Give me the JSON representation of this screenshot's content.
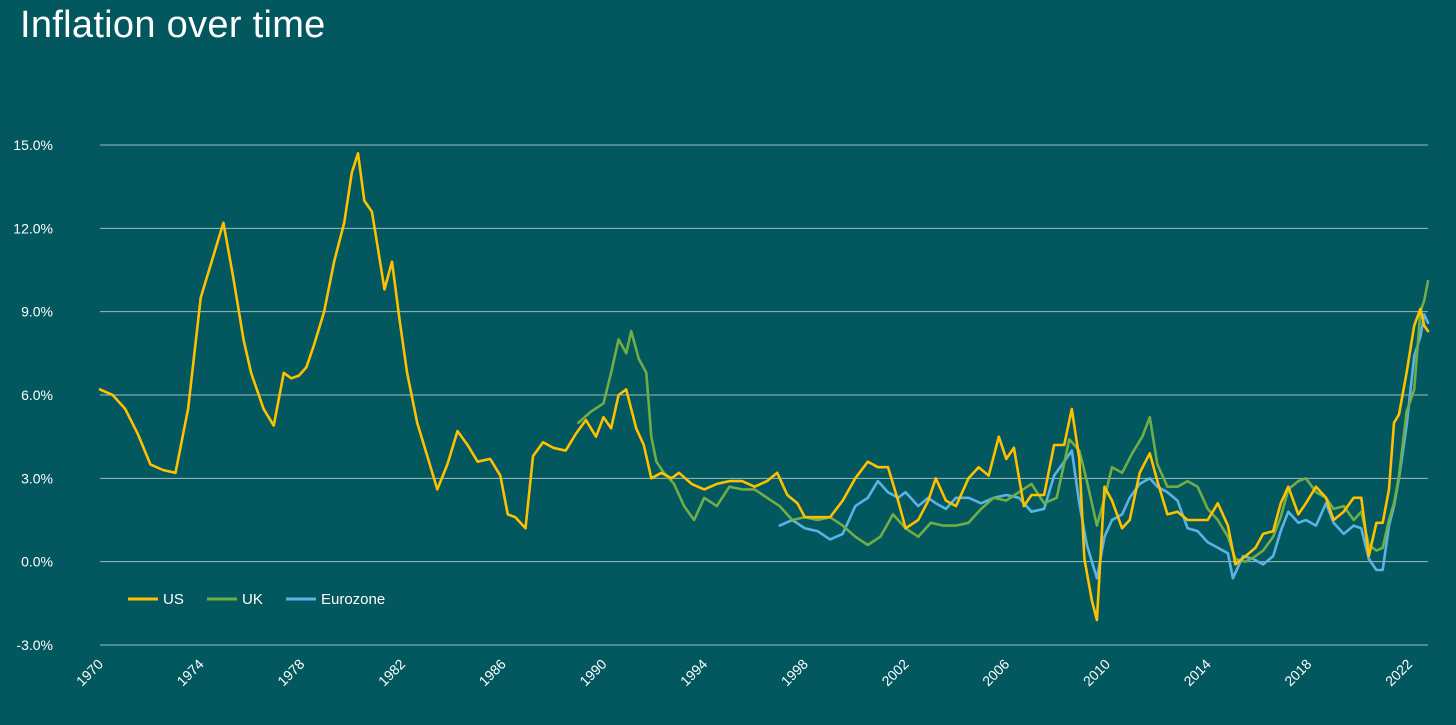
{
  "chart_data": {
    "type": "line",
    "title": "Inflation over time",
    "xlabel": "",
    "ylabel": "",
    "xlim": [
      1970,
      2022.75
    ],
    "ylim": [
      -3.0,
      15.0
    ],
    "y_ticks": [
      "-3.0%",
      "0.0%",
      "3.0%",
      "6.0%",
      "9.0%",
      "12.0%",
      "15.0%"
    ],
    "x_ticks": [
      "1970",
      "1974",
      "1978",
      "1982",
      "1986",
      "1990",
      "1994",
      "1998",
      "2002",
      "2006",
      "2010",
      "2014",
      "2018",
      "2022"
    ],
    "grid": "horizontal",
    "legend": "bottom-left",
    "colors": {
      "background": "#03575E",
      "grid": "#9DBDBE",
      "US": "#FFC000",
      "UK": "#70AD47",
      "Eurozone": "#5BB3E5"
    },
    "series": [
      {
        "name": "US",
        "color": "#FFC000",
        "points": [
          [
            1970.0,
            6.2
          ],
          [
            1970.5,
            6.0
          ],
          [
            1971.0,
            5.5
          ],
          [
            1971.5,
            4.6
          ],
          [
            1972.0,
            3.5
          ],
          [
            1972.5,
            3.3
          ],
          [
            1973.0,
            3.2
          ],
          [
            1973.5,
            5.5
          ],
          [
            1974.0,
            9.5
          ],
          [
            1974.5,
            11.0
          ],
          [
            1974.9,
            12.2
          ],
          [
            1975.3,
            10.2
          ],
          [
            1975.7,
            8.0
          ],
          [
            1976.0,
            6.8
          ],
          [
            1976.5,
            5.5
          ],
          [
            1976.9,
            4.9
          ],
          [
            1977.3,
            6.8
          ],
          [
            1977.6,
            6.6
          ],
          [
            1977.9,
            6.7
          ],
          [
            1978.2,
            7.0
          ],
          [
            1978.5,
            7.8
          ],
          [
            1978.9,
            9.0
          ],
          [
            1979.3,
            10.8
          ],
          [
            1979.7,
            12.2
          ],
          [
            1980.0,
            14.0
          ],
          [
            1980.25,
            14.7
          ],
          [
            1980.5,
            13.0
          ],
          [
            1980.8,
            12.6
          ],
          [
            1981.0,
            11.5
          ],
          [
            1981.3,
            9.8
          ],
          [
            1981.6,
            10.8
          ],
          [
            1981.9,
            8.7
          ],
          [
            1982.2,
            6.8
          ],
          [
            1982.6,
            5.0
          ],
          [
            1983.0,
            3.8
          ],
          [
            1983.4,
            2.6
          ],
          [
            1983.8,
            3.5
          ],
          [
            1984.2,
            4.7
          ],
          [
            1984.6,
            4.2
          ],
          [
            1985.0,
            3.6
          ],
          [
            1985.5,
            3.7
          ],
          [
            1985.9,
            3.1
          ],
          [
            1986.2,
            1.7
          ],
          [
            1986.5,
            1.6
          ],
          [
            1986.9,
            1.2
          ],
          [
            1987.2,
            3.8
          ],
          [
            1987.6,
            4.3
          ],
          [
            1988.0,
            4.1
          ],
          [
            1988.5,
            4.0
          ],
          [
            1988.9,
            4.6
          ],
          [
            1989.3,
            5.1
          ],
          [
            1989.7,
            4.5
          ],
          [
            1990.0,
            5.2
          ],
          [
            1990.3,
            4.8
          ],
          [
            1990.6,
            6.0
          ],
          [
            1990.9,
            6.2
          ],
          [
            1991.3,
            4.8
          ],
          [
            1991.6,
            4.2
          ],
          [
            1991.9,
            3.0
          ],
          [
            1992.3,
            3.2
          ],
          [
            1992.7,
            3.0
          ],
          [
            1993.0,
            3.2
          ],
          [
            1993.5,
            2.8
          ],
          [
            1994.0,
            2.6
          ],
          [
            1994.5,
            2.8
          ],
          [
            1995.0,
            2.9
          ],
          [
            1995.5,
            2.9
          ],
          [
            1996.0,
            2.7
          ],
          [
            1996.5,
            2.9
          ],
          [
            1996.9,
            3.2
          ],
          [
            1997.3,
            2.4
          ],
          [
            1997.7,
            2.1
          ],
          [
            1998.0,
            1.6
          ],
          [
            1998.5,
            1.6
          ],
          [
            1999.0,
            1.6
          ],
          [
            1999.5,
            2.2
          ],
          [
            2000.0,
            3.0
          ],
          [
            2000.5,
            3.6
          ],
          [
            2000.9,
            3.4
          ],
          [
            2001.3,
            3.4
          ],
          [
            2001.7,
            2.2
          ],
          [
            2002.0,
            1.2
          ],
          [
            2002.5,
            1.5
          ],
          [
            2002.9,
            2.2
          ],
          [
            2003.2,
            3.0
          ],
          [
            2003.6,
            2.2
          ],
          [
            2004.0,
            2.0
          ],
          [
            2004.5,
            3.0
          ],
          [
            2004.9,
            3.4
          ],
          [
            2005.3,
            3.1
          ],
          [
            2005.7,
            4.5
          ],
          [
            2006.0,
            3.7
          ],
          [
            2006.3,
            4.1
          ],
          [
            2006.7,
            2.0
          ],
          [
            2007.0,
            2.4
          ],
          [
            2007.5,
            2.4
          ],
          [
            2007.9,
            4.2
          ],
          [
            2008.3,
            4.2
          ],
          [
            2008.6,
            5.5
          ],
          [
            2008.9,
            3.7
          ],
          [
            2009.1,
            0.1
          ],
          [
            2009.4,
            -1.4
          ],
          [
            2009.6,
            -2.1
          ],
          [
            2009.9,
            2.7
          ],
          [
            2010.2,
            2.2
          ],
          [
            2010.6,
            1.2
          ],
          [
            2010.9,
            1.5
          ],
          [
            2011.3,
            3.2
          ],
          [
            2011.7,
            3.9
          ],
          [
            2012.0,
            2.9
          ],
          [
            2012.4,
            1.7
          ],
          [
            2012.8,
            1.8
          ],
          [
            2013.2,
            1.5
          ],
          [
            2013.6,
            1.5
          ],
          [
            2014.0,
            1.5
          ],
          [
            2014.4,
            2.1
          ],
          [
            2014.8,
            1.3
          ],
          [
            2015.1,
            -0.1
          ],
          [
            2015.5,
            0.2
          ],
          [
            2015.9,
            0.5
          ],
          [
            2016.2,
            1.0
          ],
          [
            2016.6,
            1.1
          ],
          [
            2016.9,
            2.1
          ],
          [
            2017.2,
            2.7
          ],
          [
            2017.6,
            1.7
          ],
          [
            2017.9,
            2.1
          ],
          [
            2018.3,
            2.7
          ],
          [
            2018.7,
            2.3
          ],
          [
            2019.0,
            1.5
          ],
          [
            2019.4,
            1.8
          ],
          [
            2019.8,
            2.3
          ],
          [
            2020.1,
            2.3
          ],
          [
            2020.4,
            0.2
          ],
          [
            2020.7,
            1.4
          ],
          [
            2020.95,
            1.4
          ],
          [
            2021.2,
            2.6
          ],
          [
            2021.4,
            5.0
          ],
          [
            2021.6,
            5.3
          ],
          [
            2021.9,
            6.8
          ],
          [
            2022.2,
            8.5
          ],
          [
            2022.45,
            9.1
          ],
          [
            2022.6,
            8.5
          ],
          [
            2022.75,
            8.3
          ]
        ]
      },
      {
        "name": "UK",
        "color": "#70AD47",
        "points": [
          [
            1989.0,
            5.0
          ],
          [
            1989.5,
            5.4
          ],
          [
            1990.0,
            5.7
          ],
          [
            1990.3,
            6.8
          ],
          [
            1990.6,
            8.0
          ],
          [
            1990.9,
            7.5
          ],
          [
            1991.1,
            8.3
          ],
          [
            1991.4,
            7.3
          ],
          [
            1991.7,
            6.8
          ],
          [
            1991.9,
            4.5
          ],
          [
            1992.1,
            3.6
          ],
          [
            1992.4,
            3.2
          ],
          [
            1992.8,
            2.8
          ],
          [
            1993.2,
            2.0
          ],
          [
            1993.6,
            1.5
          ],
          [
            1994.0,
            2.3
          ],
          [
            1994.5,
            2.0
          ],
          [
            1995.0,
            2.7
          ],
          [
            1995.5,
            2.6
          ],
          [
            1996.0,
            2.6
          ],
          [
            1996.5,
            2.3
          ],
          [
            1997.0,
            2.0
          ],
          [
            1997.5,
            1.5
          ],
          [
            1998.0,
            1.6
          ],
          [
            1998.5,
            1.5
          ],
          [
            1999.0,
            1.6
          ],
          [
            1999.5,
            1.3
          ],
          [
            2000.0,
            0.9
          ],
          [
            2000.5,
            0.6
          ],
          [
            2001.0,
            0.9
          ],
          [
            2001.5,
            1.7
          ],
          [
            2002.0,
            1.2
          ],
          [
            2002.5,
            0.9
          ],
          [
            2003.0,
            1.4
          ],
          [
            2003.5,
            1.3
          ],
          [
            2004.0,
            1.3
          ],
          [
            2004.5,
            1.4
          ],
          [
            2005.0,
            1.9
          ],
          [
            2005.5,
            2.3
          ],
          [
            2006.0,
            2.2
          ],
          [
            2006.5,
            2.5
          ],
          [
            2007.0,
            2.8
          ],
          [
            2007.5,
            2.1
          ],
          [
            2008.0,
            2.3
          ],
          [
            2008.5,
            4.4
          ],
          [
            2008.9,
            4.0
          ],
          [
            2009.2,
            2.9
          ],
          [
            2009.6,
            1.3
          ],
          [
            2009.9,
            2.3
          ],
          [
            2010.2,
            3.4
          ],
          [
            2010.6,
            3.2
          ],
          [
            2011.0,
            3.9
          ],
          [
            2011.4,
            4.5
          ],
          [
            2011.7,
            5.2
          ],
          [
            2012.0,
            3.5
          ],
          [
            2012.4,
            2.7
          ],
          [
            2012.8,
            2.7
          ],
          [
            2013.2,
            2.9
          ],
          [
            2013.6,
            2.7
          ],
          [
            2014.0,
            1.9
          ],
          [
            2014.4,
            1.5
          ],
          [
            2014.8,
            0.9
          ],
          [
            2015.1,
            0.1
          ],
          [
            2015.5,
            0.0
          ],
          [
            2015.9,
            0.2
          ],
          [
            2016.2,
            0.4
          ],
          [
            2016.6,
            0.9
          ],
          [
            2016.9,
            1.6
          ],
          [
            2017.2,
            2.6
          ],
          [
            2017.6,
            2.9
          ],
          [
            2017.9,
            3.0
          ],
          [
            2018.3,
            2.5
          ],
          [
            2018.7,
            2.3
          ],
          [
            2019.0,
            1.9
          ],
          [
            2019.4,
            2.0
          ],
          [
            2019.8,
            1.5
          ],
          [
            2020.1,
            1.8
          ],
          [
            2020.4,
            0.6
          ],
          [
            2020.7,
            0.4
          ],
          [
            2020.95,
            0.5
          ],
          [
            2021.2,
            1.5
          ],
          [
            2021.4,
            2.1
          ],
          [
            2021.6,
            3.1
          ],
          [
            2021.9,
            5.4
          ],
          [
            2022.2,
            6.2
          ],
          [
            2022.45,
            9.0
          ],
          [
            2022.6,
            9.4
          ],
          [
            2022.75,
            10.1
          ]
        ]
      },
      {
        "name": "Eurozone",
        "color": "#5BB3E5",
        "points": [
          [
            1997.0,
            1.3
          ],
          [
            1997.5,
            1.5
          ],
          [
            1998.0,
            1.2
          ],
          [
            1998.5,
            1.1
          ],
          [
            1999.0,
            0.8
          ],
          [
            1999.5,
            1.0
          ],
          [
            2000.0,
            2.0
          ],
          [
            2000.5,
            2.3
          ],
          [
            2000.9,
            2.9
          ],
          [
            2001.3,
            2.5
          ],
          [
            2001.7,
            2.3
          ],
          [
            2002.0,
            2.5
          ],
          [
            2002.5,
            2.0
          ],
          [
            2002.9,
            2.3
          ],
          [
            2003.2,
            2.1
          ],
          [
            2003.6,
            1.9
          ],
          [
            2004.0,
            2.3
          ],
          [
            2004.5,
            2.3
          ],
          [
            2005.0,
            2.1
          ],
          [
            2005.5,
            2.3
          ],
          [
            2006.0,
            2.4
          ],
          [
            2006.5,
            2.3
          ],
          [
            2007.0,
            1.8
          ],
          [
            2007.5,
            1.9
          ],
          [
            2007.9,
            3.1
          ],
          [
            2008.3,
            3.6
          ],
          [
            2008.6,
            4.0
          ],
          [
            2008.9,
            2.1
          ],
          [
            2009.2,
            0.6
          ],
          [
            2009.6,
            -0.6
          ],
          [
            2009.9,
            0.9
          ],
          [
            2010.2,
            1.5
          ],
          [
            2010.6,
            1.7
          ],
          [
            2010.9,
            2.3
          ],
          [
            2011.3,
            2.8
          ],
          [
            2011.7,
            3.0
          ],
          [
            2012.0,
            2.7
          ],
          [
            2012.4,
            2.5
          ],
          [
            2012.8,
            2.2
          ],
          [
            2013.2,
            1.2
          ],
          [
            2013.6,
            1.1
          ],
          [
            2014.0,
            0.7
          ],
          [
            2014.4,
            0.5
          ],
          [
            2014.8,
            0.3
          ],
          [
            2015.0,
            -0.6
          ],
          [
            2015.4,
            0.2
          ],
          [
            2015.8,
            0.1
          ],
          [
            2016.2,
            -0.1
          ],
          [
            2016.6,
            0.2
          ],
          [
            2016.9,
            1.1
          ],
          [
            2017.2,
            1.8
          ],
          [
            2017.6,
            1.4
          ],
          [
            2017.9,
            1.5
          ],
          [
            2018.3,
            1.3
          ],
          [
            2018.7,
            2.1
          ],
          [
            2019.0,
            1.4
          ],
          [
            2019.4,
            1.0
          ],
          [
            2019.8,
            1.3
          ],
          [
            2020.1,
            1.2
          ],
          [
            2020.4,
            0.1
          ],
          [
            2020.7,
            -0.3
          ],
          [
            2020.95,
            -0.3
          ],
          [
            2021.2,
            1.3
          ],
          [
            2021.4,
            2.0
          ],
          [
            2021.6,
            3.0
          ],
          [
            2021.9,
            4.9
          ],
          [
            2022.2,
            7.4
          ],
          [
            2022.45,
            8.1
          ],
          [
            2022.6,
            8.9
          ],
          [
            2022.75,
            8.6
          ]
        ]
      }
    ]
  }
}
